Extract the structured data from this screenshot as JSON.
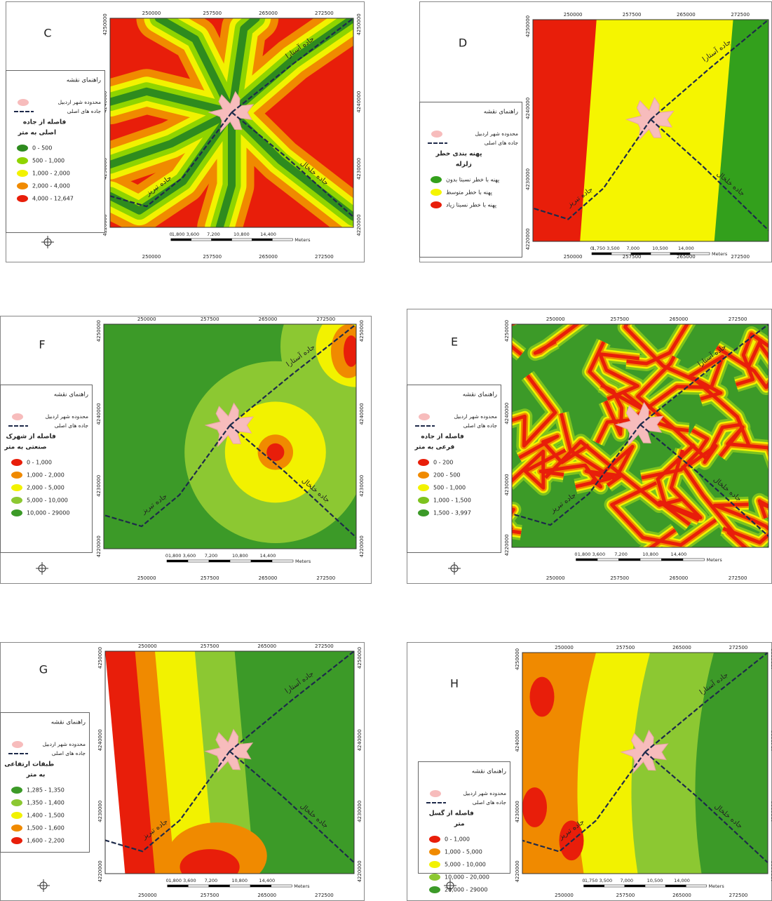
{
  "map_grid": {
    "x_ticks": [
      250000,
      257500,
      265000,
      272500
    ],
    "y_ticks": [
      4250000,
      4240000,
      4230000,
      4220000
    ]
  },
  "legend": {
    "title": "راهنمای نقشه",
    "city": "محدوده شهر اردبیل",
    "road": "جاده های اصلی"
  },
  "road_labels": {
    "astara": "جاده آستارا",
    "khalkhal": "جاده خلخال",
    "tabriz": "جاده تبریز"
  },
  "scale_unit": "Meters",
  "panels": [
    {
      "label": "C",
      "heading": [
        "فاصله از جاده",
        "اصلی به متر"
      ],
      "items": [
        {
          "label": "0 - 500",
          "color": "#2e8b1e"
        },
        {
          "label": "500 - 1,000",
          "color": "#8fd400"
        },
        {
          "label": "1,000 - 2,000",
          "color": "#f2f200"
        },
        {
          "label": "2,000 - 4,000",
          "color": "#f08a00"
        },
        {
          "label": "4,000 - 12,647",
          "color": "#e81e0a"
        }
      ],
      "scale": [
        "0",
        "1,800 3,600",
        "7,200",
        "10,800",
        "14,400"
      ]
    },
    {
      "label": "D",
      "heading": [
        "پهنه بندی خطر",
        "زلزله"
      ],
      "items": [
        {
          "label": "پهنه با خطر نسبتا بدون",
          "color": "#33a01c"
        },
        {
          "label": "پهنه با خطر متوسط",
          "color": "#f5f500"
        },
        {
          "label": "پهنه با خطر نسبتا زیاد",
          "color": "#e81e0a"
        }
      ],
      "scale": [
        "0",
        "1,750 3,500",
        "7,000",
        "10,500",
        "14,000"
      ]
    },
    {
      "label": "F",
      "heading": [
        "فاصله از شهرک",
        "صنعتی به متر"
      ],
      "items": [
        {
          "label": "0 - 1,000",
          "color": "#e81e0a"
        },
        {
          "label": "1,000 - 2,000",
          "color": "#f08a00"
        },
        {
          "label": "2,000 - 5,000",
          "color": "#f2f200"
        },
        {
          "label": "5,000 - 10,000",
          "color": "#8cc832"
        },
        {
          "label": "10,000 - 29000",
          "color": "#3c9a28"
        }
      ],
      "scale": [
        "0",
        "1,800 3,600",
        "7,200",
        "10,800",
        "14,400"
      ]
    },
    {
      "label": "E",
      "heading": [
        "فاصله از جاده",
        "فرعی به متر"
      ],
      "items": [
        {
          "label": "0 - 200",
          "color": "#e81e0a"
        },
        {
          "label": "200 - 500",
          "color": "#f08a00"
        },
        {
          "label": "500 - 1,000",
          "color": "#f2f200"
        },
        {
          "label": "1,000 - 1,500",
          "color": "#7dc21e"
        },
        {
          "label": "1,500 - 3,997",
          "color": "#3c9a28"
        }
      ],
      "scale": [
        "0",
        "1,800 3,600",
        "7,200",
        "10,800",
        "14,400"
      ]
    },
    {
      "label": "G",
      "heading": [
        "طبقات ارتفاعی",
        "به متر"
      ],
      "items": [
        {
          "label": "1,285 - 1,350",
          "color": "#3c9a28"
        },
        {
          "label": "1,350 - 1,400",
          "color": "#8cc832"
        },
        {
          "label": "1,400 - 1,500",
          "color": "#f2f200"
        },
        {
          "label": "1,500 - 1,600",
          "color": "#f08a00"
        },
        {
          "label": "1,600 - 2,200",
          "color": "#e81e0a"
        }
      ],
      "scale": [
        "0",
        "1,800 3,600",
        "7,200",
        "10,800",
        "14,400"
      ]
    },
    {
      "label": "H",
      "heading": [
        "فاصله از گسل",
        "متر"
      ],
      "items": [
        {
          "label": "0 - 1,000",
          "color": "#e81e0a"
        },
        {
          "label": "1,000 - 5,000",
          "color": "#f08a00"
        },
        {
          "label": "5,000 - 10,000",
          "color": "#f2f200"
        },
        {
          "label": "10,000 - 20,000",
          "color": "#8cc832"
        },
        {
          "label": "20,000 - 29000",
          "color": "#3c9a28"
        }
      ],
      "scale": [
        "0",
        "1,750 3,500",
        "7,000",
        "10,500",
        "14,000"
      ]
    }
  ]
}
